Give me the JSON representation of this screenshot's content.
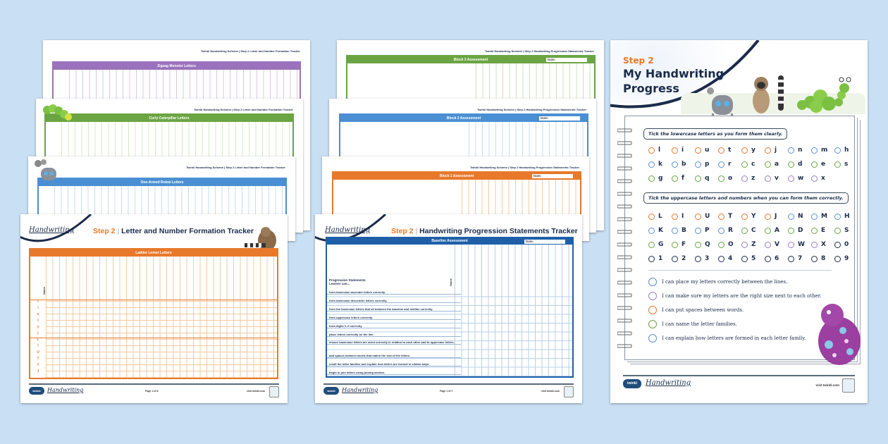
{
  "background_color": "#c9dff3",
  "left_stack": {
    "running_header": "Twinkl Handwriting Scheme | Step 2 Letter and Number Formation Tracker",
    "sheets": [
      {
        "title": "Zigzag Monster Letters",
        "color": "#9b72bd"
      },
      {
        "title": "Curly Caterpillar Letters",
        "color": "#6ba543"
      },
      {
        "title": "One-Armed Robot Letters",
        "color": "#4a8fd3"
      }
    ],
    "front": {
      "logo": "Handwriting",
      "step": "Step 2",
      "separator": "|",
      "title": "Letter and Number Formation Tracker",
      "table_title": "Ladder Lemur Letters",
      "color": "#e8792b",
      "name_label": "Name",
      "rows": [
        "l",
        "i",
        "u",
        "t",
        "y",
        "j",
        "L",
        "I",
        "U",
        "T",
        "Y",
        "J"
      ],
      "footer": {
        "brand": "twinkl",
        "logo": "Handwriting",
        "page": "Page 1 of 8",
        "visit": "visit twinkl.com"
      }
    }
  },
  "middle_stack": {
    "running_header": "Twinkl Handwriting Scheme | Step 2 Handwriting Progression Statements Tracker",
    "sheets": [
      {
        "title": "Block 3 Assessment",
        "color": "#6ba543",
        "date_label": "Date:"
      },
      {
        "title": "Block 2 Assessment",
        "color": "#4a8fd3",
        "date_label": "Date:"
      },
      {
        "title": "Block 1 Assessment",
        "color": "#e8792b",
        "date_label": "Date:"
      }
    ],
    "front": {
      "logo": "Handwriting",
      "step": "Step 2",
      "separator": "|",
      "title": "Handwriting Progression Statements Tracker",
      "table_title": "Baseline Assessment",
      "date_label": "Date:",
      "color": "#1f5fa8",
      "name_label": "Name",
      "heading": "Progression Statements",
      "subheading": "Learner can...",
      "statements": [
        "form lowercase ascender letters correctly.",
        "form lowercase descender letters correctly.",
        "form the lowercase letters that sit between the baseline and midline correctly.",
        "form uppercase letters correctly.",
        "form digits 0–9 correctly.",
        "place letters correctly on the line.",
        "ensure lowercase letters are sized correctly in relation to each other and to uppercase letters.",
        "add spaces between words that match the size of the letters.",
        "recall the letter families and explain how letters are formed in similar ways.",
        "begin to join letters using joining strokes."
      ],
      "footer": {
        "brand": "twinkl",
        "logo": "Handwriting",
        "page": "Page 1 of 7",
        "visit": "visit twinkl.com"
      }
    }
  },
  "right_page": {
    "step": "Step 2",
    "title_line1": "My Handwriting",
    "title_line2": "Progress",
    "lowercase_instruction": "Tick the lowercase letters as you form them clearly.",
    "lowercase": [
      {
        "c": "l",
        "col": "#e8792b"
      },
      {
        "c": "i",
        "col": "#e8792b"
      },
      {
        "c": "u",
        "col": "#e8792b"
      },
      {
        "c": "t",
        "col": "#e8792b"
      },
      {
        "c": "y",
        "col": "#e8792b"
      },
      {
        "c": "j",
        "col": "#e8792b"
      },
      {
        "c": "n",
        "col": "#5b8fd3"
      },
      {
        "c": "m",
        "col": "#5b8fd3"
      },
      {
        "c": "h",
        "col": "#5b8fd3"
      },
      {
        "c": "k",
        "col": "#5b8fd3"
      },
      {
        "c": "b",
        "col": "#5b8fd3"
      },
      {
        "c": "p",
        "col": "#5b8fd3"
      },
      {
        "c": "r",
        "col": "#5b8fd3"
      },
      {
        "c": "c",
        "col": "#6ba543"
      },
      {
        "c": "a",
        "col": "#6ba543"
      },
      {
        "c": "d",
        "col": "#6ba543"
      },
      {
        "c": "e",
        "col": "#6ba543"
      },
      {
        "c": "s",
        "col": "#6ba543"
      },
      {
        "c": "g",
        "col": "#6ba543"
      },
      {
        "c": "f",
        "col": "#6ba543"
      },
      {
        "c": "q",
        "col": "#6ba543"
      },
      {
        "c": "o",
        "col": "#6ba543"
      },
      {
        "c": "z",
        "col": "#9b7fc4"
      },
      {
        "c": "v",
        "col": "#9b7fc4"
      },
      {
        "c": "w",
        "col": "#9b7fc4"
      },
      {
        "c": "x",
        "col": "#9b7fc4"
      }
    ],
    "uppercase_instruction": "Tick the uppercase letters and numbers when you can form them correctly.",
    "uppercase": [
      {
        "c": "L",
        "col": "#e8792b"
      },
      {
        "c": "I",
        "col": "#e8792b"
      },
      {
        "c": "U",
        "col": "#e8792b"
      },
      {
        "c": "T",
        "col": "#e8792b"
      },
      {
        "c": "Y",
        "col": "#e8792b"
      },
      {
        "c": "J",
        "col": "#e8792b"
      },
      {
        "c": "N",
        "col": "#5b8fd3"
      },
      {
        "c": "M",
        "col": "#5b8fd3"
      },
      {
        "c": "H",
        "col": "#5b8fd3"
      },
      {
        "c": "K",
        "col": "#5b8fd3"
      },
      {
        "c": "B",
        "col": "#5b8fd3"
      },
      {
        "c": "P",
        "col": "#5b8fd3"
      },
      {
        "c": "R",
        "col": "#5b8fd3"
      },
      {
        "c": "C",
        "col": "#6ba543"
      },
      {
        "c": "A",
        "col": "#6ba543"
      },
      {
        "c": "D",
        "col": "#6ba543"
      },
      {
        "c": "E",
        "col": "#6ba543"
      },
      {
        "c": "S",
        "col": "#6ba543"
      },
      {
        "c": "G",
        "col": "#6ba543"
      },
      {
        "c": "F",
        "col": "#6ba543"
      },
      {
        "c": "Q",
        "col": "#6ba543"
      },
      {
        "c": "O",
        "col": "#6ba543"
      },
      {
        "c": "Z",
        "col": "#9b7fc4"
      },
      {
        "c": "V",
        "col": "#9b7fc4"
      },
      {
        "c": "W",
        "col": "#9b7fc4"
      },
      {
        "c": "X",
        "col": "#9b7fc4"
      },
      {
        "c": "0",
        "col": "#1a2b4a"
      },
      {
        "c": "1",
        "col": "#1a2b4a"
      },
      {
        "c": "2",
        "col": "#1a2b4a"
      },
      {
        "c": "3",
        "col": "#1a2b4a"
      },
      {
        "c": "4",
        "col": "#1a2b4a"
      },
      {
        "c": "5",
        "col": "#1a2b4a"
      },
      {
        "c": "6",
        "col": "#1a2b4a"
      },
      {
        "c": "7",
        "col": "#1a2b4a"
      },
      {
        "c": "8",
        "col": "#1a2b4a"
      },
      {
        "c": "9",
        "col": "#1a2b4a"
      }
    ],
    "statements": [
      {
        "text": "I can place my letters correctly between the lines.",
        "col": "#5b8fd3"
      },
      {
        "text": "I can make sure my letters are the right size next to each other.",
        "col": "#9b7fc4"
      },
      {
        "text": "I can put spaces between words.",
        "col": "#e8792b"
      },
      {
        "text": "I can name the letter families.",
        "col": "#6ba543"
      },
      {
        "text": "I can explain how letters are formed in each letter family.",
        "col": "#5b8fd3"
      }
    ],
    "footer": {
      "brand": "twinkl",
      "logo": "Handwriting",
      "visit": "visit twinkl.com"
    }
  }
}
